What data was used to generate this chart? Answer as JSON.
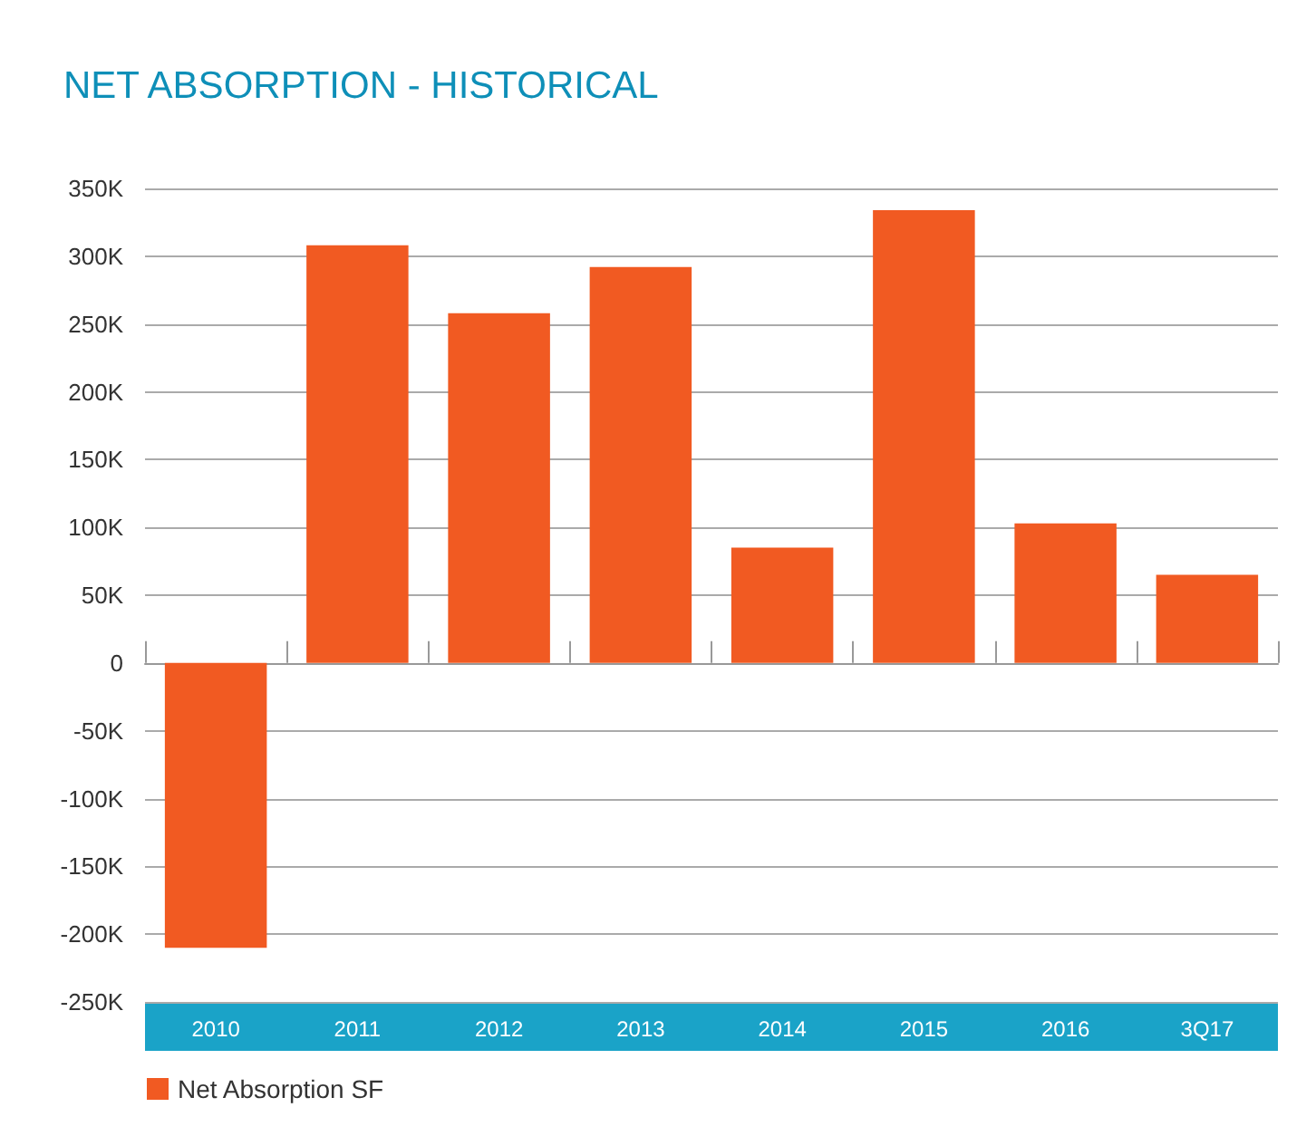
{
  "chart_data": {
    "type": "bar",
    "title": "NET ABSORPTION - HISTORICAL",
    "categories": [
      "2010",
      "2011",
      "2012",
      "2013",
      "2014",
      "2015",
      "2016",
      "3Q17"
    ],
    "series": [
      {
        "name": "Net Absorption SF",
        "color": "#f15a22",
        "values": [
          -210000,
          308000,
          258000,
          292000,
          85000,
          334000,
          103000,
          65000
        ]
      }
    ],
    "ylim": [
      -250000,
      350000
    ],
    "yticks": [
      {
        "value": -250000,
        "label": "-250K"
      },
      {
        "value": -200000,
        "label": "-200K"
      },
      {
        "value": -150000,
        "label": "-150K"
      },
      {
        "value": -100000,
        "label": "-100K"
      },
      {
        "value": -50000,
        "label": "-50K"
      },
      {
        "value": 0,
        "label": "0"
      },
      {
        "value": 50000,
        "label": "50K"
      },
      {
        "value": 100000,
        "label": "100K"
      },
      {
        "value": 150000,
        "label": "150K"
      },
      {
        "value": 200000,
        "label": "200K"
      },
      {
        "value": 250000,
        "label": "250K"
      },
      {
        "value": 300000,
        "label": "300K"
      },
      {
        "value": 350000,
        "label": "350K"
      }
    ],
    "grid": "y",
    "legend": "bottom left"
  }
}
